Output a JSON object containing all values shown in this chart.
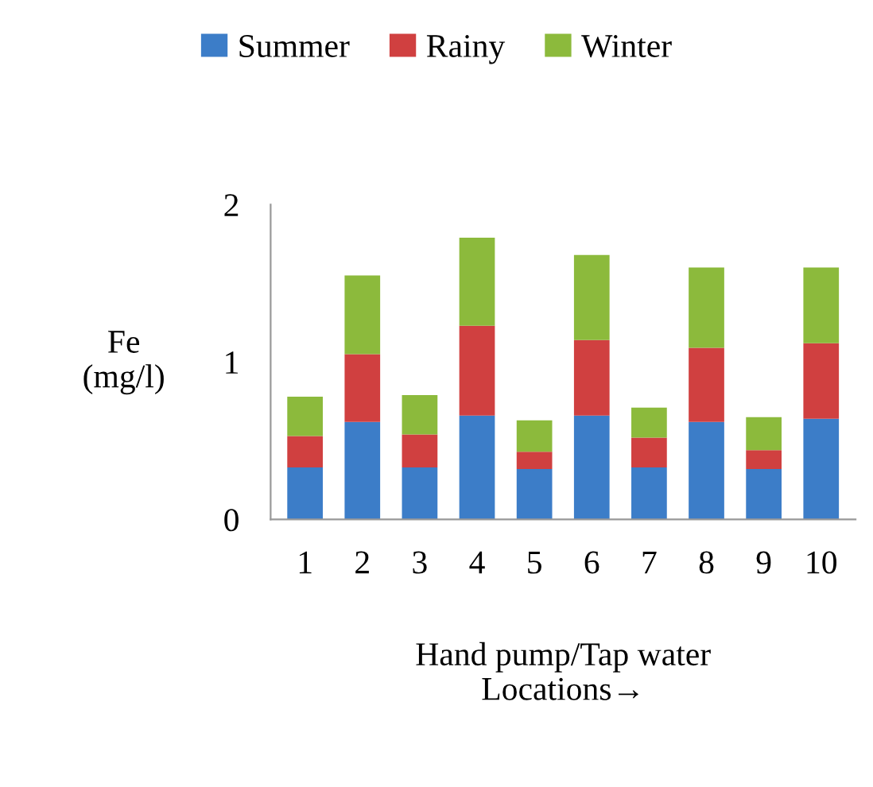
{
  "chart_data": {
    "type": "bar",
    "stacked": true,
    "categories": [
      "1",
      "2",
      "3",
      "4",
      "5",
      "6",
      "7",
      "8",
      "9",
      "10"
    ],
    "series": [
      {
        "name": "Summer",
        "color": "#3c7dc8",
        "values": [
          0.33,
          0.62,
          0.33,
          0.66,
          0.32,
          0.66,
          0.33,
          0.62,
          0.32,
          0.64
        ]
      },
      {
        "name": "Rainy",
        "color": "#d04040",
        "values": [
          0.2,
          0.43,
          0.21,
          0.57,
          0.11,
          0.48,
          0.19,
          0.47,
          0.12,
          0.48
        ]
      },
      {
        "name": "Winter",
        "color": "#8cba3c",
        "values": [
          0.25,
          0.5,
          0.25,
          0.56,
          0.2,
          0.54,
          0.19,
          0.51,
          0.21,
          0.48
        ]
      }
    ],
    "xlabel": "Hand pump/Tap water\nLocations→",
    "ylabel": "Fe\n(mg/l)",
    "ylim": [
      0,
      2
    ],
    "yticks": [
      0,
      1,
      2
    ],
    "grid": false,
    "legend": "top"
  }
}
